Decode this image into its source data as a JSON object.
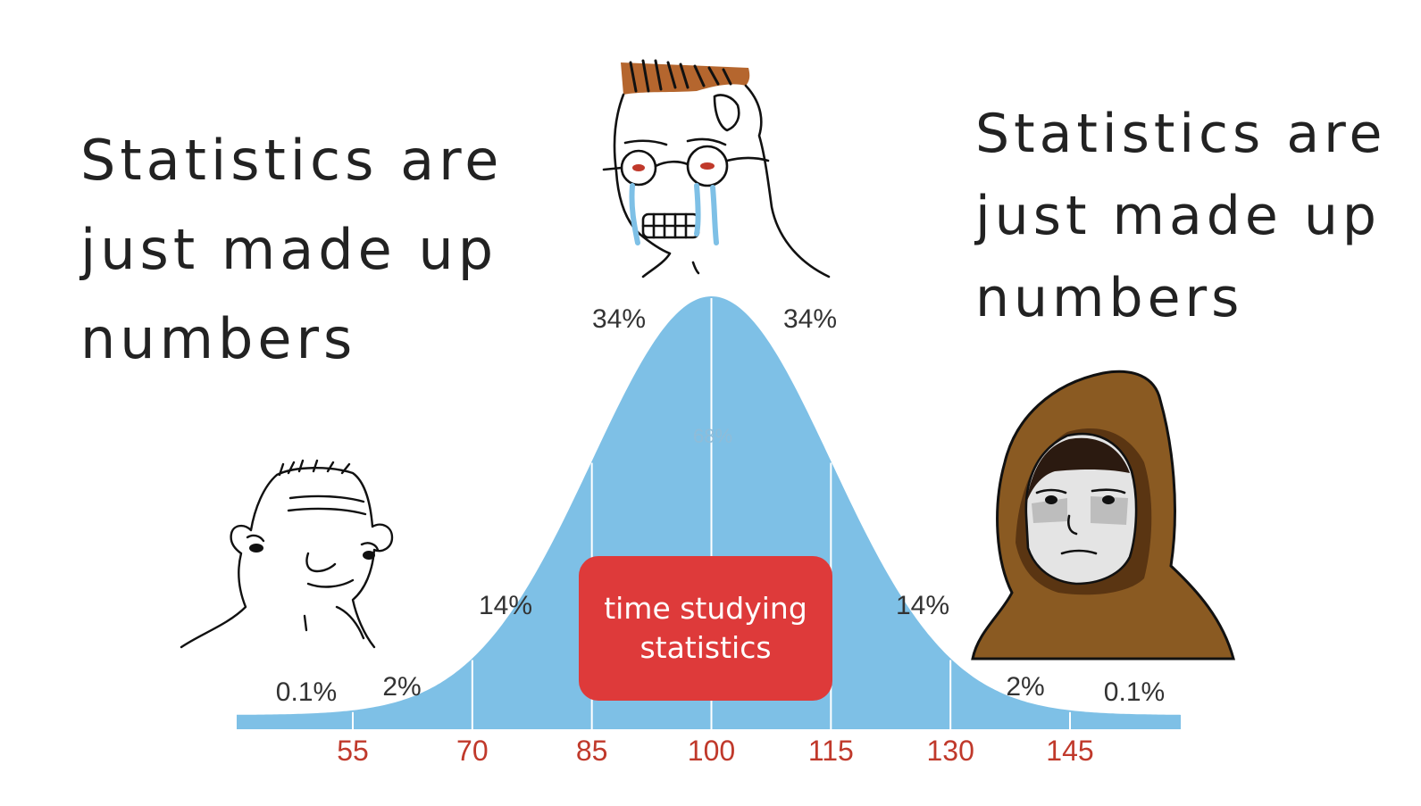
{
  "caption_left": {
    "lines": [
      "Statistics are",
      "just made up",
      "numbers"
    ]
  },
  "caption_right": {
    "lines": [
      "Statistics are",
      "just made up",
      "numbers"
    ]
  },
  "curve_label": {
    "lines": [
      "time studying",
      "statistics"
    ]
  },
  "chart_data": {
    "type": "area",
    "distribution": "normal",
    "mean": 100,
    "sd": 15,
    "x_ticks": [
      "55",
      "70",
      "85",
      "100",
      "115",
      "130",
      "145"
    ],
    "band_labels": [
      "0.1%",
      "2%",
      "14%",
      "34%",
      "34%",
      "14%",
      "2%",
      "0.1%"
    ],
    "inner_label": "68%",
    "colors": {
      "curve": "#7ec0e6",
      "tick_text": "#c0392b",
      "label_box": "#de3a3a"
    }
  },
  "characters": [
    {
      "name": "wojak-low-iq",
      "position": "left"
    },
    {
      "name": "wojak-crying-glasses",
      "position": "center"
    },
    {
      "name": "wojak-hooded",
      "position": "right"
    }
  ]
}
